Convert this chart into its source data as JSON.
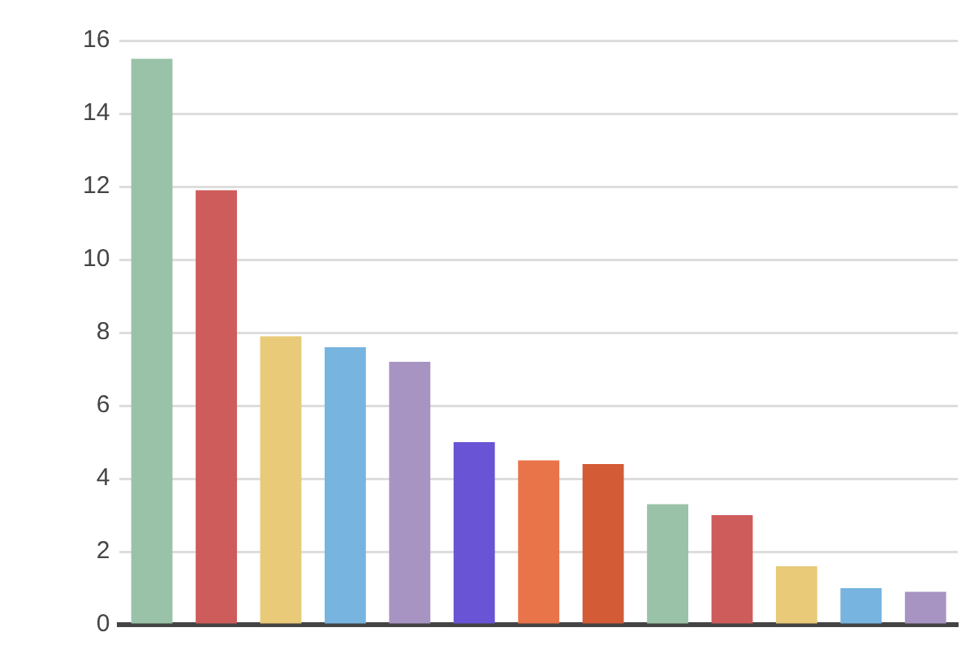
{
  "chart_data": {
    "type": "bar",
    "categories": [
      null,
      null,
      null,
      null,
      null,
      null,
      null,
      null,
      null,
      null,
      null,
      null,
      null
    ],
    "values": [
      15.5,
      11.9,
      7.9,
      7.6,
      7.2,
      5.0,
      4.5,
      4.4,
      3.3,
      3.0,
      1.6,
      1.0,
      0.9
    ],
    "colors": [
      "#9ac2a8",
      "#cd5c5a",
      "#e8ca78",
      "#77b4e0",
      "#a894c2",
      "#6854d4",
      "#ea744a",
      "#d35b36",
      "#9ac2a8",
      "#cd5c5a",
      "#e8ca78",
      "#77b4e0",
      "#a894c2"
    ],
    "ylim": [
      0,
      16
    ],
    "yticks": [
      0,
      2,
      4,
      6,
      8,
      10,
      12,
      14,
      16
    ],
    "grid": "y",
    "tick_labels": "y"
  }
}
